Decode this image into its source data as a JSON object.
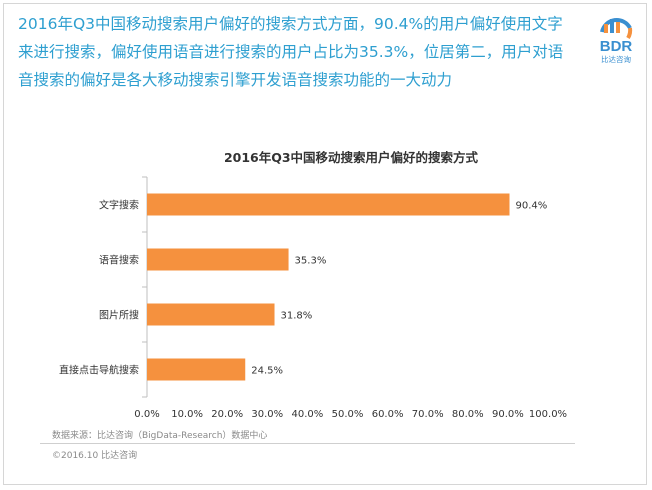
{
  "headline": "2016年Q3中国移动搜索用户偏好的搜索方式方面，90.4%的用户偏好使用文字来进行搜索，偏好使用语音进行搜索的用户占比为35.3%，位居第二，用户对语音搜索的偏好是各大移动搜索引擎开发语音搜索功能的一大动力",
  "logo": {
    "text": "BDR",
    "subtext": "比达咨询"
  },
  "colors": {
    "accent": "#2e9fd0",
    "bar": "#f5913e",
    "logo_blue": "#3a8fd0",
    "logo_orange": "#f5913e"
  },
  "source_note": "数据来源：比达咨询（BigData-Research）数据中心",
  "copyright": "©2016.10  比达咨询",
  "chart_data": {
    "type": "bar",
    "orientation": "horizontal",
    "title": "2016年Q3中国移动搜索用户偏好的搜索方式",
    "categories": [
      "文字搜索",
      "语音搜索",
      "图片所搜",
      "直接点击导航搜索"
    ],
    "values": [
      90.4,
      35.3,
      31.8,
      24.5
    ],
    "value_labels": [
      "90.4%",
      "35.3%",
      "31.8%",
      "24.5%"
    ],
    "xlim": [
      0,
      100
    ],
    "xticks": [
      0,
      10,
      20,
      30,
      40,
      50,
      60,
      70,
      80,
      90,
      100
    ],
    "xtick_labels": [
      "0.0%",
      "10.0%",
      "20.0%",
      "30.0%",
      "40.0%",
      "50.0%",
      "60.0%",
      "70.0%",
      "80.0%",
      "90.0%",
      "100.0%"
    ],
    "grid": false,
    "legend": "none"
  }
}
